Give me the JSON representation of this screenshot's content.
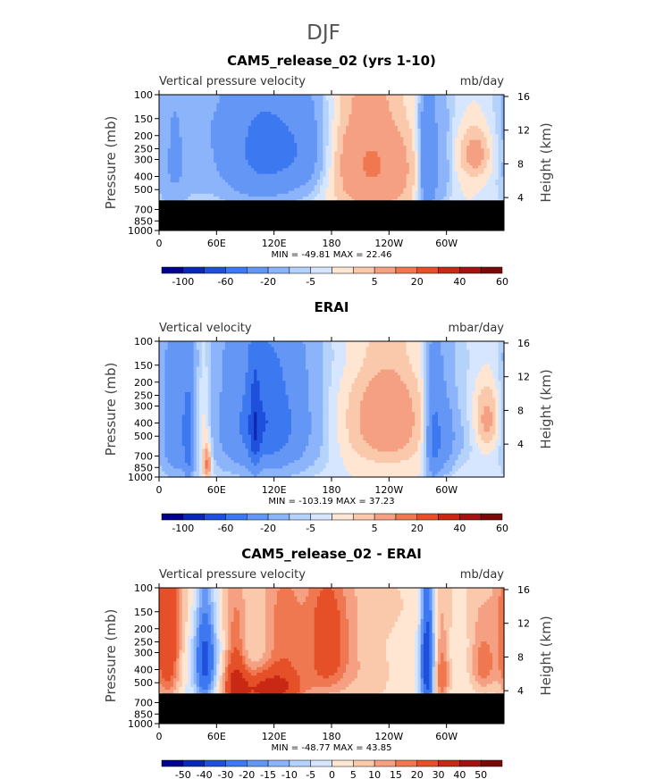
{
  "figure": {
    "title": "DJF"
  },
  "chart_data": [
    {
      "type": "heatmap",
      "title": "CAM5_release_02 (yrs 1-10)",
      "left_label": "Vertical pressure velocity",
      "right_label": "mb/day",
      "ylabel": "Pressure (mb)",
      "ylabel_right": "Height (km)",
      "x_ticks": [
        "0",
        "60E",
        "120E",
        "180",
        "120W",
        "60W"
      ],
      "y_ticks": [
        "100",
        "150",
        "200",
        "250",
        "300",
        "400",
        "500",
        "700",
        "850",
        "1000"
      ],
      "height_ticks": [
        "16",
        "12",
        "8",
        "4"
      ],
      "ylim": [
        1000,
        100
      ],
      "stats": "MIN = -49.81   MAX =  22.46",
      "colorbar_labels": [
        "-100",
        "-60",
        "-20",
        "-5",
        "5",
        "20",
        "40",
        "60"
      ],
      "colorbar_colors": [
        "#00008b",
        "#0a28b4",
        "#1e50dc",
        "#3c78f0",
        "#6496f5",
        "#8cb4fa",
        "#b4d2fa",
        "#d7e6ff",
        "#ffe6d2",
        "#fac8aa",
        "#f5a082",
        "#f07850",
        "#e65028",
        "#c82814",
        "#a01414",
        "#780a0a"
      ],
      "masked_below_mb": 600,
      "blobs": [
        {
          "lon": 15,
          "p": 330,
          "rl": 14,
          "rp": 260,
          "v": -20
        },
        {
          "lon": 45,
          "p": 250,
          "rl": 8,
          "rp": 200,
          "v": -6
        },
        {
          "lon": 80,
          "p": 210,
          "rl": 22,
          "rp": 180,
          "v": -6
        },
        {
          "lon": 108,
          "p": 300,
          "rl": 40,
          "rp": 250,
          "v": -32
        },
        {
          "lon": 125,
          "p": 250,
          "rl": 26,
          "rp": 150,
          "v": -15
        },
        {
          "lon": 155,
          "p": 250,
          "rl": 14,
          "rp": 150,
          "v": -12
        },
        {
          "lon": 212,
          "p": 300,
          "rl": 32,
          "rp": 270,
          "v": 18
        },
        {
          "lon": 240,
          "p": 400,
          "rl": 25,
          "rp": 240,
          "v": 6
        },
        {
          "lon": 280,
          "p": 350,
          "rl": 6,
          "rp": 300,
          "v": -40
        },
        {
          "lon": 295,
          "p": 350,
          "rl": 8,
          "rp": 250,
          "v": -16
        },
        {
          "lon": 330,
          "p": 270,
          "rl": 12,
          "rp": 90,
          "v": 14
        },
        {
          "lon": 0,
          "p": 125,
          "rl": 360,
          "rp": 60,
          "v": -3
        }
      ]
    },
    {
      "type": "heatmap",
      "title": "ERAI",
      "left_label": "Vertical velocity",
      "right_label": "mbar/day",
      "ylabel": "Pressure (mb)",
      "ylabel_right": "Height (km)",
      "x_ticks": [
        "0",
        "60E",
        "120E",
        "180",
        "120W",
        "60W"
      ],
      "y_ticks": [
        "100",
        "150",
        "200",
        "250",
        "300",
        "400",
        "500",
        "700",
        "850",
        "1000"
      ],
      "height_ticks": [
        "16",
        "12",
        "8",
        "4"
      ],
      "ylim": [
        1000,
        100
      ],
      "stats": "MIN = -103.19   MAX =  37.23",
      "colorbar_labels": [
        "-100",
        "-60",
        "-20",
        "-5",
        "5",
        "20",
        "40",
        "60"
      ],
      "colorbar_colors": [
        "#00008b",
        "#0a28b4",
        "#1e50dc",
        "#3c78f0",
        "#6496f5",
        "#8cb4fa",
        "#b4d2fa",
        "#d7e6ff",
        "#ffe6d2",
        "#fac8aa",
        "#f5a082",
        "#f07850",
        "#e65028",
        "#c82814",
        "#a01414",
        "#780a0a"
      ],
      "masked_below_mb": null,
      "blobs": [
        {
          "lon": 20,
          "p": 450,
          "rl": 14,
          "rp": 380,
          "v": -35
        },
        {
          "lon": 31,
          "p": 600,
          "rl": 3,
          "rp": 300,
          "v": -30
        },
        {
          "lon": 46,
          "p": 420,
          "rl": 7,
          "rp": 300,
          "v": 18
        },
        {
          "lon": 50,
          "p": 800,
          "rl": 3,
          "rp": 150,
          "v": 25
        },
        {
          "lon": 110,
          "p": 420,
          "rl": 42,
          "rp": 360,
          "v": -38
        },
        {
          "lon": 112,
          "p": 380,
          "rl": 20,
          "rp": 250,
          "v": -22
        },
        {
          "lon": 100,
          "p": 500,
          "rl": 4,
          "rp": 300,
          "v": -30
        },
        {
          "lon": 238,
          "p": 380,
          "rl": 26,
          "rp": 260,
          "v": 18
        },
        {
          "lon": 190,
          "p": 400,
          "rl": 18,
          "rp": 300,
          "v": 5
        },
        {
          "lon": 287,
          "p": 520,
          "rl": 6,
          "rp": 350,
          "v": -45
        },
        {
          "lon": 300,
          "p": 500,
          "rl": 7,
          "rp": 300,
          "v": -22
        },
        {
          "lon": 315,
          "p": 500,
          "rl": 12,
          "rp": 250,
          "v": -10
        },
        {
          "lon": 343,
          "p": 380,
          "rl": 11,
          "rp": 150,
          "v": 14
        },
        {
          "lon": 0,
          "p": 125,
          "rl": 360,
          "rp": 60,
          "v": -3
        }
      ]
    },
    {
      "type": "heatmap",
      "title": "CAM5_release_02 - ERAI",
      "left_label": "Vertical pressure velocity",
      "right_label": "mb/day",
      "ylabel": "Pressure (mb)",
      "ylabel_right": "Height (km)",
      "x_ticks": [
        "0",
        "60E",
        "120E",
        "180",
        "120W",
        "60W"
      ],
      "y_ticks": [
        "100",
        "150",
        "200",
        "250",
        "300",
        "400",
        "500",
        "700",
        "850",
        "1000"
      ],
      "height_ticks": [
        "16",
        "12",
        "8",
        "4"
      ],
      "ylim": [
        1000,
        100
      ],
      "stats": "MIN = -48.77   MAX =  43.85",
      "colorbar_labels": [
        "-50",
        "-40",
        "-30",
        "-20",
        "-15",
        "-10",
        "-5",
        "0",
        "5",
        "10",
        "15",
        "20",
        "30",
        "40",
        "50"
      ],
      "colorbar_colors": [
        "#00008b",
        "#0a28b4",
        "#1e50dc",
        "#3c78f0",
        "#6496f5",
        "#8cb4fa",
        "#b4d2fa",
        "#d7e6ff",
        "#ffe6d2",
        "#fac8aa",
        "#f5a082",
        "#f07850",
        "#e65028",
        "#c82814",
        "#a01414",
        "#780a0a"
      ],
      "masked_below_mb": 600,
      "blobs": [
        {
          "lon": 12,
          "p": 280,
          "rl": 12,
          "rp": 250,
          "v": 32
        },
        {
          "lon": 23,
          "p": 320,
          "rl": 8,
          "rp": 250,
          "v": -12
        },
        {
          "lon": 48,
          "p": 350,
          "rl": 8,
          "rp": 230,
          "v": -35
        },
        {
          "lon": 80,
          "p": 450,
          "rl": 8,
          "rp": 250,
          "v": 24
        },
        {
          "lon": 110,
          "p": 560,
          "rl": 28,
          "rp": 120,
          "v": 30
        },
        {
          "lon": 130,
          "p": 300,
          "rl": 16,
          "rp": 250,
          "v": 16
        },
        {
          "lon": 175,
          "p": 280,
          "rl": 16,
          "rp": 200,
          "v": 24
        },
        {
          "lon": 215,
          "p": 420,
          "rl": 25,
          "rp": 250,
          "v": 8
        },
        {
          "lon": 280,
          "p": 350,
          "rl": 5,
          "rp": 300,
          "v": -40
        },
        {
          "lon": 295,
          "p": 450,
          "rl": 6,
          "rp": 200,
          "v": 20
        },
        {
          "lon": 338,
          "p": 360,
          "rl": 10,
          "rp": 150,
          "v": 18
        },
        {
          "lon": 0,
          "p": 125,
          "rl": 360,
          "rp": 70,
          "v": 4
        }
      ]
    }
  ]
}
